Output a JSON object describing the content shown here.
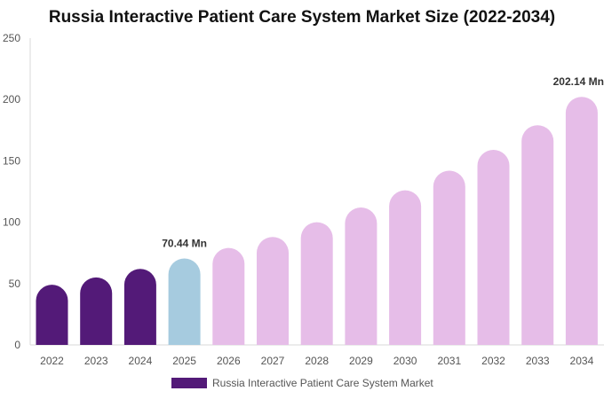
{
  "chart_data": {
    "type": "bar",
    "title": "Russia Interactive Patient Care System Market Size (2022-2034)",
    "categories": [
      "2022",
      "2023",
      "2024",
      "2025",
      "2026",
      "2027",
      "2028",
      "2029",
      "2030",
      "2031",
      "2032",
      "2033",
      "2034"
    ],
    "series": [
      {
        "name": "Russia Interactive Patient Care System Market",
        "values": [
          49,
          55,
          62,
          70.44,
          79,
          88,
          100,
          112,
          126,
          142,
          159,
          179,
          202.14
        ]
      }
    ],
    "ylim": [
      0,
      250
    ],
    "yticks": [
      0,
      50,
      100,
      150,
      200,
      250
    ],
    "data_labels": [
      {
        "category": "2025",
        "text": "70.44 Mn"
      },
      {
        "category": "2034",
        "text": "202.14 Mn"
      }
    ],
    "bar_colors": [
      "#531a78",
      "#531a78",
      "#531a78",
      "#a6cbdf",
      "#e6bde8",
      "#e6bde8",
      "#e6bde8",
      "#e6bde8",
      "#e6bde8",
      "#e6bde8",
      "#e6bde8",
      "#e6bde8",
      "#e6bde8"
    ],
    "legend": {
      "position": "bottom",
      "color": "#531a78"
    },
    "grid": false
  }
}
